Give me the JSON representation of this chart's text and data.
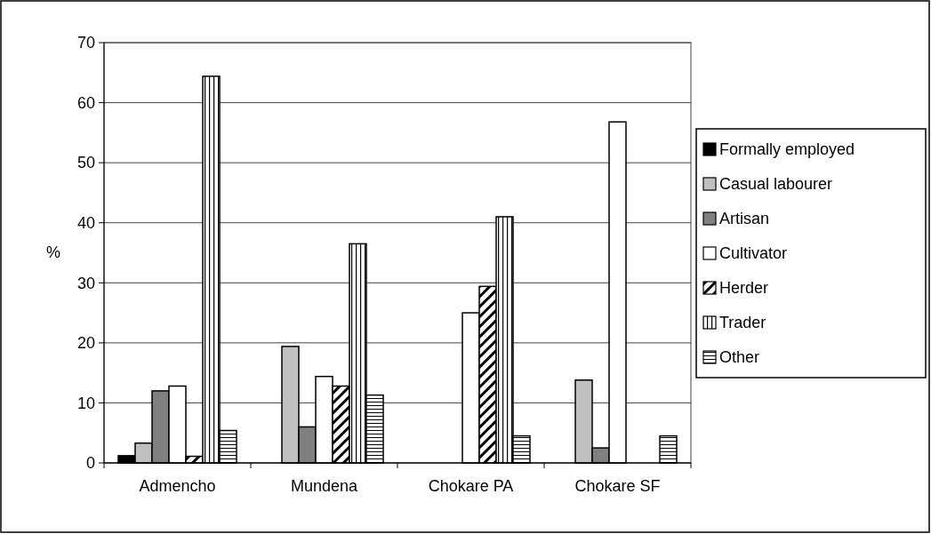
{
  "chart_data": {
    "type": "bar",
    "ylabel": "%",
    "categories": [
      "Admencho",
      "Mundena",
      "Chokare PA",
      "Chokare SF"
    ],
    "series": [
      {
        "name": "Formally employed",
        "color": "#000000",
        "values": [
          1.2,
          null,
          null,
          null
        ]
      },
      {
        "name": "Casual labourer",
        "color": "#c0c0c0",
        "values": [
          3.3,
          19.4,
          null,
          13.8
        ]
      },
      {
        "name": "Artisan",
        "color": "#808080",
        "values": [
          12,
          6,
          null,
          2.5
        ]
      },
      {
        "name": "Cultivator",
        "color": "#ffffff",
        "values": [
          12.8,
          14.4,
          25,
          56.8
        ]
      },
      {
        "name": "Herder",
        "color": "#000000",
        "values": [
          1.1,
          12.8,
          29.4,
          null
        ]
      },
      {
        "name": "Trader",
        "color": "#000000",
        "values": [
          64.4,
          36.5,
          41,
          null
        ]
      },
      {
        "name": "Other",
        "color": "#000000",
        "values": [
          5.4,
          11.3,
          4.5,
          4.5
        ]
      }
    ],
    "ylim": [
      0,
      70
    ],
    "yticks": [
      0,
      10,
      20,
      30,
      40,
      50,
      60,
      70
    ],
    "grid": "y",
    "legend": "right"
  }
}
